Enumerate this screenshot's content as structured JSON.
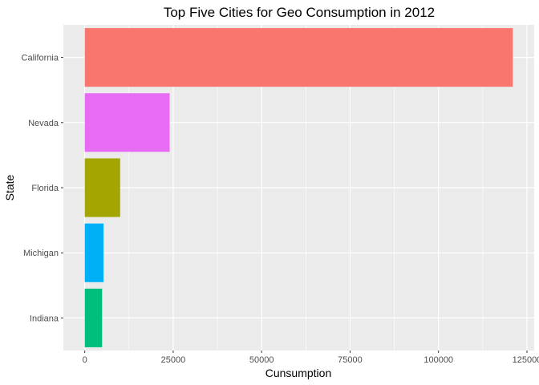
{
  "chart_data": {
    "type": "bar",
    "orientation": "horizontal",
    "title": "Top Five Cities for Geo Consumption in 2012",
    "xlabel": "Cunsumption",
    "ylabel": "State",
    "categories": [
      "California",
      "Nevada",
      "Florida",
      "Michigan",
      "Indiana"
    ],
    "values": [
      121000,
      24000,
      10000,
      5300,
      4900
    ],
    "colors": [
      "#F8766D",
      "#E76BF3",
      "#A3A500",
      "#00B0F6",
      "#00BF7D"
    ],
    "xlim": [
      -6050,
      127050
    ],
    "xticks": [
      0,
      25000,
      50000,
      75000,
      100000,
      125000
    ],
    "xtick_labels": [
      "0",
      "25000",
      "50000",
      "75000",
      "100000",
      "125000"
    ],
    "grid": true,
    "legend": "none",
    "panel_background": "#EBEBEB"
  }
}
